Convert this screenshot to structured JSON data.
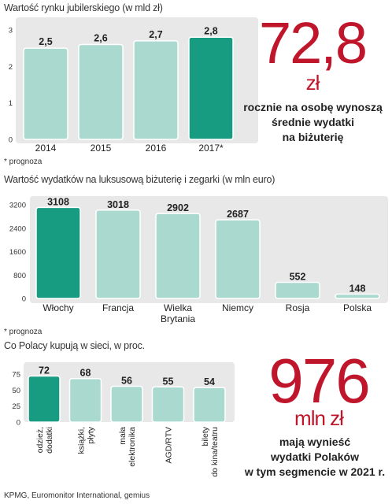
{
  "colors": {
    "bar": "#a9d9cf",
    "bar_highlight": "#179b81",
    "panel": "#e8e8e8",
    "accent": "#c0162c"
  },
  "top_chart": {
    "title": "Wartość rynku jubilerskiego (w mld zł)",
    "footnote": "* prognoza"
  },
  "middle_chart": {
    "title": "Wartość wydatków na luksusową biżuterię i zegarki (w mln euro)",
    "footnote": "* prognoza"
  },
  "bottom_chart": {
    "title": "Co Polacy kupują w sieci, w proc."
  },
  "callout_top": {
    "number": "72,8",
    "unit": "zł",
    "lines": [
      "rocznie na osobę wynoszą",
      "średnie wydatki",
      "na biżuterię"
    ]
  },
  "callout_bottom": {
    "number": "976",
    "unit": "mln zł",
    "lines": [
      "mają wynieść",
      "wydatki Polaków",
      "w tym segmencie w 2021 r."
    ]
  },
  "source": "KPMG, Euromonitor International, gemius",
  "chart_data": [
    {
      "type": "bar",
      "categories": [
        "2014",
        "2015",
        "2016",
        "2017*"
      ],
      "values": [
        2.5,
        2.6,
        2.7,
        2.8
      ],
      "value_labels": [
        "2,5",
        "2,6",
        "2,7",
        "2,8"
      ],
      "highlight_index": 3,
      "yticks": [
        0,
        1,
        2,
        3
      ],
      "ylim": [
        0,
        3
      ],
      "grid": false
    },
    {
      "type": "bar",
      "categories": [
        [
          "Włochy"
        ],
        [
          "Francja"
        ],
        [
          "Wielka",
          "Brytania"
        ],
        [
          "Niemcy"
        ],
        [
          "Rosja"
        ],
        [
          "Polska"
        ]
      ],
      "values": [
        3108,
        3018,
        2902,
        2687,
        552,
        148
      ],
      "value_labels": [
        "3108",
        "3018",
        "2902",
        "2687",
        "552",
        "148"
      ],
      "highlight_index": 0,
      "yticks": [
        0,
        800,
        1600,
        2400,
        3200
      ],
      "ylim": [
        0,
        3200
      ],
      "grid": false
    },
    {
      "type": "bar",
      "categories": [
        [
          "odzież,",
          "dodatki"
        ],
        [
          "książki,",
          "płyty"
        ],
        [
          "mała",
          "elektronika"
        ],
        [
          "AGD/RTV"
        ],
        [
          "bilety",
          "do kina/teatru"
        ]
      ],
      "values": [
        72,
        68,
        56,
        55,
        54
      ],
      "value_labels": [
        "72",
        "68",
        "56",
        "55",
        "54"
      ],
      "highlight_index": 0,
      "yticks": [
        0,
        25,
        50,
        75
      ],
      "ylim": [
        0,
        75
      ],
      "grid": false
    }
  ]
}
